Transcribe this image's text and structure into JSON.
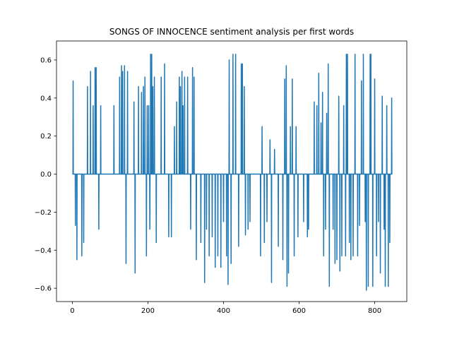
{
  "chart_data": {
    "type": "line",
    "title": "SONGS OF INNOCENCE sentiment analysis per first words",
    "xlabel": "",
    "ylabel": "",
    "xlim": [
      -42,
      885
    ],
    "ylim": [
      -0.67,
      0.7
    ],
    "x_ticks": [
      0,
      200,
      400,
      600,
      800
    ],
    "x_tick_labels": [
      "0",
      "200",
      "400",
      "600",
      "800"
    ],
    "y_ticks": [
      -0.6,
      -0.4,
      -0.2,
      0.0,
      0.2,
      0.4,
      0.6
    ],
    "y_tick_labels": [
      "−0.6",
      "−0.4",
      "−0.2",
      "0.0",
      "0.2",
      "0.4",
      "0.6"
    ],
    "grid": false,
    "legend": "none",
    "series": [
      {
        "color": "#1f77b4",
        "baseline": 0,
        "length": 845,
        "spikes": [
          [
            2,
            0.49
          ],
          [
            8,
            -0.27
          ],
          [
            12,
            -0.45
          ],
          [
            25,
            -0.43
          ],
          [
            30,
            -0.36
          ],
          [
            40,
            0.46
          ],
          [
            48,
            0.54
          ],
          [
            55,
            0.36
          ],
          [
            60,
            0.56
          ],
          [
            63,
            0.56
          ],
          [
            70,
            -0.29
          ],
          [
            75,
            0.36
          ],
          [
            110,
            0.36
          ],
          [
            125,
            0.51
          ],
          [
            130,
            0.57
          ],
          [
            133,
            0.54
          ],
          [
            138,
            0.57
          ],
          [
            142,
            -0.47
          ],
          [
            146,
            0.54
          ],
          [
            163,
            0.38
          ],
          [
            166,
            -0.52
          ],
          [
            175,
            0.46
          ],
          [
            183,
            0.43
          ],
          [
            188,
            0.46
          ],
          [
            192,
            0.51
          ],
          [
            196,
            -0.43
          ],
          [
            198,
            0.36
          ],
          [
            202,
            0.36
          ],
          [
            205,
            -0.29
          ],
          [
            207,
            0.63
          ],
          [
            210,
            0.63
          ],
          [
            213,
            0.46
          ],
          [
            217,
            0.51
          ],
          [
            222,
            -0.36
          ],
          [
            235,
            0.51
          ],
          [
            244,
            0.58
          ],
          [
            255,
            -0.33
          ],
          [
            262,
            -0.33
          ],
          [
            270,
            0.25
          ],
          [
            276,
            0.38
          ],
          [
            283,
            0.51
          ],
          [
            286,
            0.46
          ],
          [
            290,
            0.54
          ],
          [
            293,
            0.36
          ],
          [
            297,
            0.51
          ],
          [
            305,
            0.51
          ],
          [
            313,
            -0.29
          ],
          [
            318,
            0.56
          ],
          [
            322,
            0.51
          ],
          [
            328,
            -0.45
          ],
          [
            340,
            -0.36
          ],
          [
            350,
            -0.57
          ],
          [
            355,
            -0.29
          ],
          [
            362,
            -0.43
          ],
          [
            370,
            -0.33
          ],
          [
            378,
            -0.49
          ],
          [
            385,
            -0.43
          ],
          [
            393,
            -0.49
          ],
          [
            400,
            -0.25
          ],
          [
            408,
            -0.43
          ],
          [
            412,
            -0.58
          ],
          [
            415,
            0.6
          ],
          [
            420,
            -0.47
          ],
          [
            425,
            0.63
          ],
          [
            432,
            0.63
          ],
          [
            440,
            -0.38
          ],
          [
            447,
            0.58
          ],
          [
            450,
            0.58
          ],
          [
            455,
            0.46
          ],
          [
            458,
            -0.32
          ],
          [
            465,
            -0.29
          ],
          [
            470,
            -0.25
          ],
          [
            498,
            -0.43
          ],
          [
            502,
            0.25
          ],
          [
            508,
            -0.36
          ],
          [
            515,
            -0.25
          ],
          [
            523,
            0.18
          ],
          [
            527,
            -0.57
          ],
          [
            535,
            0.13
          ],
          [
            545,
            -0.38
          ],
          [
            557,
            -0.45
          ],
          [
            562,
            0.5
          ],
          [
            566,
            0.57
          ],
          [
            568,
            -0.59
          ],
          [
            572,
            -0.52
          ],
          [
            577,
            0.25
          ],
          [
            582,
            0.5
          ],
          [
            587,
            -0.43
          ],
          [
            592,
            0.25
          ],
          [
            597,
            -0.33
          ],
          [
            612,
            -0.25
          ],
          [
            622,
            -0.33
          ],
          [
            625,
            -0.29
          ],
          [
            640,
            0.38
          ],
          [
            647,
            0.36
          ],
          [
            652,
            0.53
          ],
          [
            658,
            0.27
          ],
          [
            662,
            0.43
          ],
          [
            665,
            -0.43
          ],
          [
            670,
            -0.29
          ],
          [
            673,
            0.32
          ],
          [
            677,
            0.58
          ],
          [
            680,
            -0.59
          ],
          [
            690,
            -0.29
          ],
          [
            695,
            -0.47
          ],
          [
            700,
            -0.45
          ],
          [
            705,
            0.41
          ],
          [
            708,
            -0.51
          ],
          [
            713,
            -0.43
          ],
          [
            718,
            0.36
          ],
          [
            723,
            -0.43
          ],
          [
            725,
            0.63
          ],
          [
            728,
            0.63
          ],
          [
            733,
            -0.36
          ],
          [
            737,
            -0.45
          ],
          [
            743,
            -0.43
          ],
          [
            748,
            0.63
          ],
          [
            755,
            -0.43
          ],
          [
            760,
            -0.27
          ],
          [
            765,
            0.49
          ],
          [
            770,
            0.63
          ],
          [
            775,
            -0.25
          ],
          [
            778,
            -0.61
          ],
          [
            783,
            -0.59
          ],
          [
            788,
            0.63
          ],
          [
            790,
            0.63
          ],
          [
            795,
            -0.59
          ],
          [
            800,
            0.5
          ],
          [
            805,
            -0.43
          ],
          [
            810,
            -0.25
          ],
          [
            815,
            -0.52
          ],
          [
            820,
            0.41
          ],
          [
            825,
            -0.29
          ],
          [
            828,
            -0.59
          ],
          [
            832,
            0.36
          ],
          [
            836,
            -0.59
          ],
          [
            840,
            -0.36
          ],
          [
            845,
            0.4
          ]
        ]
      }
    ]
  }
}
